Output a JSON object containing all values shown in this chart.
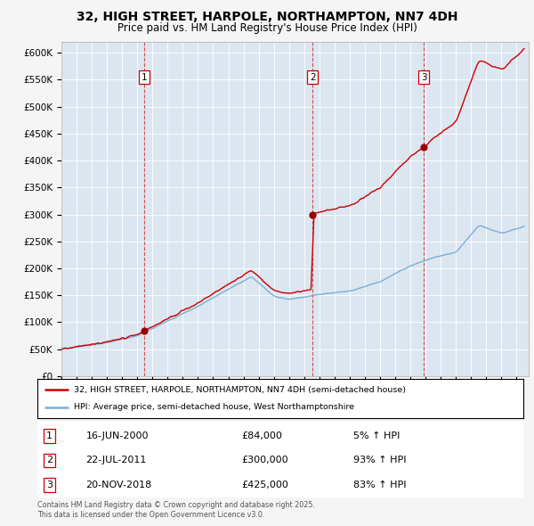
{
  "title": "32, HIGH STREET, HARPOLE, NORTHAMPTON, NN7 4DH",
  "subtitle": "Price paid vs. HM Land Registry's House Price Index (HPI)",
  "background_color": "#dce6f0",
  "plot_bg_color": "#dce6f0",
  "fig_bg_color": "#f5f5f5",
  "red_line_color": "#cc0000",
  "blue_line_color": "#7ab0d4",
  "red_line_label": "32, HIGH STREET, HARPOLE, NORTHAMPTON, NN7 4DH (semi-detached house)",
  "blue_line_label": "HPI: Average price, semi-detached house, West Northamptonshire",
  "footer": "Contains HM Land Registry data © Crown copyright and database right 2025.\nThis data is licensed under the Open Government Licence v3.0.",
  "sale_events": [
    {
      "num": 1,
      "date": "16-JUN-2000",
      "price": 84000,
      "pct": "5% ↑ HPI",
      "year": 2000.46
    },
    {
      "num": 2,
      "date": "22-JUL-2011",
      "price": 300000,
      "pct": "93% ↑ HPI",
      "year": 2011.56
    },
    {
      "num": 3,
      "date": "20-NOV-2018",
      "price": 425000,
      "pct": "83% ↑ HPI",
      "year": 2018.89
    }
  ],
  "ylim": [
    0,
    620000
  ],
  "xlim_start": 1995.0,
  "xlim_end": 2025.8,
  "yticks": [
    0,
    50000,
    100000,
    150000,
    200000,
    250000,
    300000,
    350000,
    400000,
    450000,
    500000,
    550000,
    600000
  ],
  "ytick_labels": [
    "£0",
    "£50K",
    "£100K",
    "£150K",
    "£200K",
    "£250K",
    "£300K",
    "£350K",
    "£400K",
    "£450K",
    "£500K",
    "£550K",
    "£600K"
  ]
}
